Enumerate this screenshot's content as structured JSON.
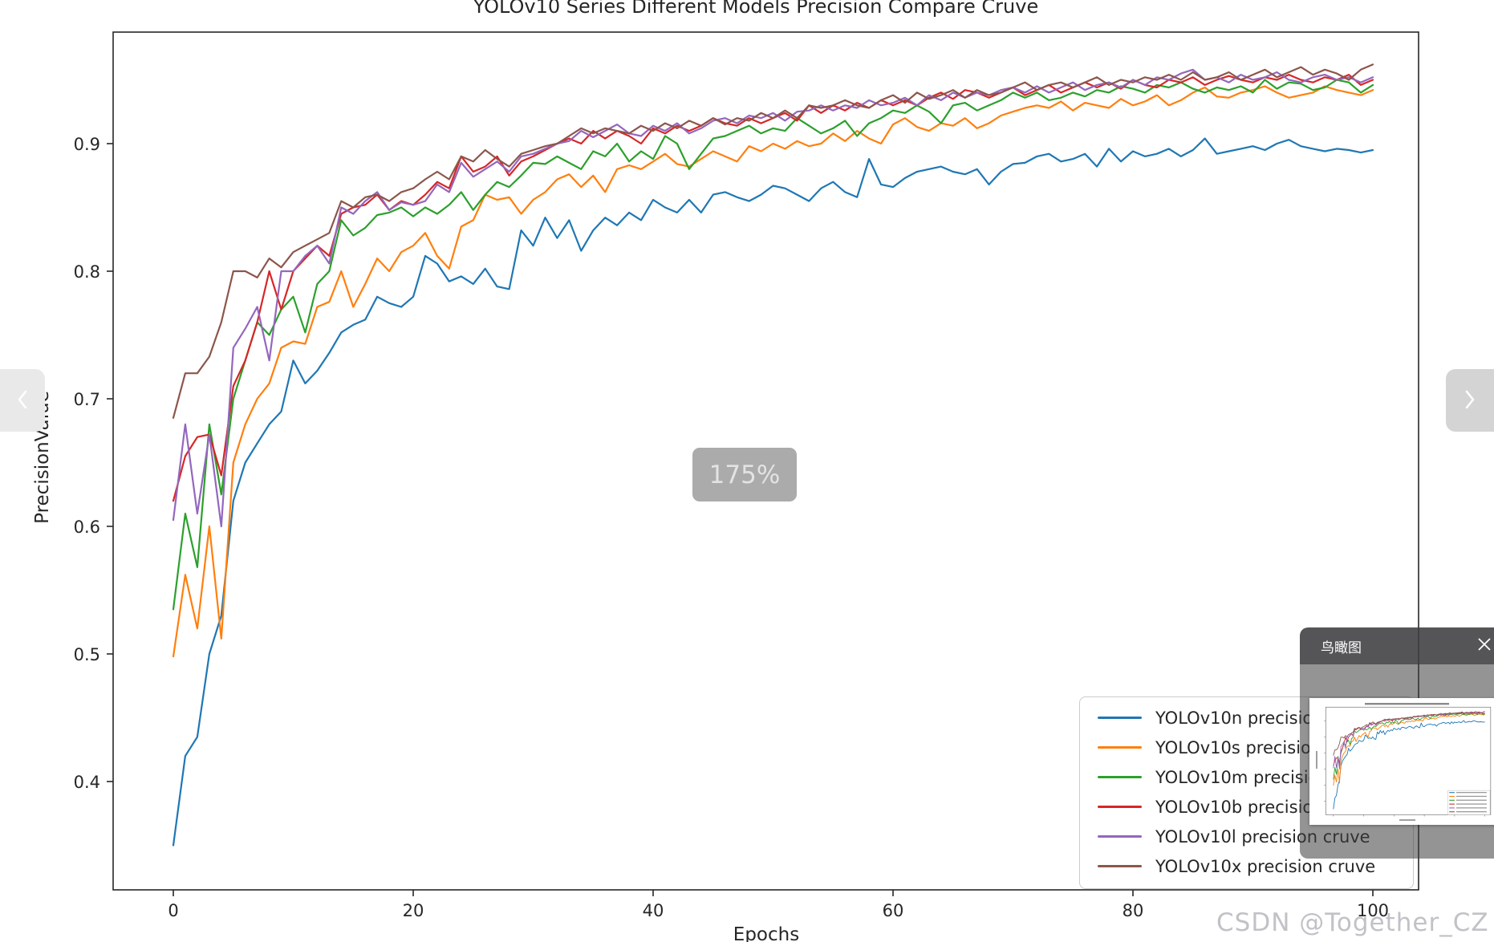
{
  "viewer": {
    "zoom_badge": "175%",
    "watermark": "CSDN @Together_CZ",
    "minimap_title": "鸟瞰图",
    "prev_tooltip": "previous image",
    "next_tooltip": "next image",
    "colors": {
      "badge_bg": "#ababab",
      "panel_header_bg": "#58585a",
      "panel_body_bg": "#919193",
      "watermark_text": "#b4b4bc",
      "nav_prev_bg": "#e9e9ea",
      "nav_next_bg": "#d4d4d5"
    }
  },
  "chart_data": {
    "type": "line",
    "title": "YOLOv10 Series Different Models Precision Compare Cruve",
    "xlabel": "Epochs",
    "ylabel": "PrecisionValue",
    "xlim": [
      -5,
      105
    ],
    "ylim": [
      0.315,
      0.99
    ],
    "grid": false,
    "legend_position": "lower right",
    "x_ticks": [
      0,
      20,
      40,
      60,
      80,
      100
    ],
    "x_tick_labels": [
      "0",
      "20",
      "40",
      "60",
      "80",
      "100"
    ],
    "y_ticks": [
      0.4,
      0.5,
      0.6,
      0.7,
      0.8,
      0.9
    ],
    "y_tick_labels": [
      "0.4",
      "0.5",
      "0.6",
      "0.7",
      "0.8",
      "0.9"
    ],
    "axis_color": "#262626",
    "series": [
      {
        "name": "YOLOv10n precision cruve",
        "color": "#1f77b4",
        "values": [
          0.35,
          0.42,
          0.435,
          0.5,
          0.53,
          0.62,
          0.65,
          0.665,
          0.68,
          0.69,
          0.73,
          0.712,
          0.722,
          0.736,
          0.752,
          0.758,
          0.762,
          0.78,
          0.775,
          0.772,
          0.78,
          0.812,
          0.806,
          0.792,
          0.796,
          0.79,
          0.802,
          0.788,
          0.786,
          0.832,
          0.82,
          0.842,
          0.826,
          0.84,
          0.816,
          0.832,
          0.842,
          0.836,
          0.846,
          0.84,
          0.856,
          0.85,
          0.846,
          0.856,
          0.846,
          0.86,
          0.862,
          0.858,
          0.855,
          0.86,
          0.867,
          0.865,
          0.86,
          0.855,
          0.865,
          0.87,
          0.862,
          0.858,
          0.888,
          0.868,
          0.866,
          0.873,
          0.878,
          0.88,
          0.882,
          0.878,
          0.876,
          0.88,
          0.868,
          0.878,
          0.884,
          0.885,
          0.89,
          0.892,
          0.886,
          0.888,
          0.892,
          0.882,
          0.896,
          0.886,
          0.894,
          0.89,
          0.892,
          0.896,
          0.89,
          0.895,
          0.904,
          0.892,
          0.894,
          0.896,
          0.898,
          0.895,
          0.9,
          0.903,
          0.898,
          0.896,
          0.894,
          0.896,
          0.895,
          0.893,
          0.895
        ]
      },
      {
        "name": "YOLOv10s precision cruve",
        "color": "#ff7f0e",
        "values": [
          0.498,
          0.562,
          0.52,
          0.6,
          0.512,
          0.65,
          0.68,
          0.7,
          0.712,
          0.74,
          0.745,
          0.743,
          0.772,
          0.776,
          0.8,
          0.772,
          0.79,
          0.81,
          0.8,
          0.815,
          0.82,
          0.83,
          0.812,
          0.802,
          0.835,
          0.84,
          0.86,
          0.856,
          0.858,
          0.845,
          0.856,
          0.862,
          0.872,
          0.876,
          0.866,
          0.875,
          0.862,
          0.88,
          0.883,
          0.88,
          0.886,
          0.892,
          0.884,
          0.882,
          0.888,
          0.894,
          0.89,
          0.886,
          0.898,
          0.894,
          0.9,
          0.896,
          0.902,
          0.898,
          0.9,
          0.908,
          0.902,
          0.91,
          0.904,
          0.9,
          0.915,
          0.92,
          0.913,
          0.91,
          0.916,
          0.914,
          0.92,
          0.912,
          0.916,
          0.922,
          0.925,
          0.928,
          0.93,
          0.928,
          0.933,
          0.926,
          0.932,
          0.93,
          0.928,
          0.935,
          0.93,
          0.933,
          0.938,
          0.93,
          0.934,
          0.94,
          0.944,
          0.937,
          0.936,
          0.94,
          0.942,
          0.945,
          0.94,
          0.936,
          0.938,
          0.94,
          0.945,
          0.942,
          0.94,
          0.938,
          0.942
        ]
      },
      {
        "name": "YOLOv10m precision cruve",
        "color": "#2ca02c",
        "values": [
          0.535,
          0.61,
          0.568,
          0.68,
          0.625,
          0.7,
          0.73,
          0.76,
          0.75,
          0.77,
          0.78,
          0.752,
          0.79,
          0.8,
          0.84,
          0.828,
          0.834,
          0.844,
          0.846,
          0.85,
          0.843,
          0.85,
          0.845,
          0.852,
          0.862,
          0.848,
          0.86,
          0.87,
          0.866,
          0.875,
          0.885,
          0.884,
          0.89,
          0.885,
          0.88,
          0.894,
          0.89,
          0.9,
          0.886,
          0.894,
          0.888,
          0.906,
          0.9,
          0.88,
          0.892,
          0.904,
          0.906,
          0.91,
          0.914,
          0.908,
          0.912,
          0.91,
          0.92,
          0.914,
          0.908,
          0.912,
          0.918,
          0.906,
          0.916,
          0.92,
          0.926,
          0.924,
          0.93,
          0.925,
          0.916,
          0.93,
          0.932,
          0.926,
          0.93,
          0.934,
          0.94,
          0.936,
          0.94,
          0.934,
          0.936,
          0.94,
          0.937,
          0.942,
          0.94,
          0.945,
          0.943,
          0.94,
          0.946,
          0.944,
          0.948,
          0.943,
          0.94,
          0.944,
          0.942,
          0.945,
          0.94,
          0.95,
          0.943,
          0.948,
          0.947,
          0.942,
          0.944,
          0.95,
          0.948,
          0.94,
          0.946
        ]
      },
      {
        "name": "YOLOv10b precision cruve",
        "color": "#d62728",
        "values": [
          0.62,
          0.655,
          0.67,
          0.672,
          0.64,
          0.71,
          0.73,
          0.76,
          0.8,
          0.77,
          0.8,
          0.81,
          0.82,
          0.812,
          0.845,
          0.85,
          0.852,
          0.86,
          0.848,
          0.855,
          0.852,
          0.86,
          0.87,
          0.865,
          0.89,
          0.878,
          0.882,
          0.89,
          0.875,
          0.886,
          0.89,
          0.895,
          0.9,
          0.904,
          0.9,
          0.91,
          0.904,
          0.91,
          0.906,
          0.9,
          0.912,
          0.908,
          0.914,
          0.91,
          0.914,
          0.92,
          0.916,
          0.914,
          0.92,
          0.916,
          0.92,
          0.924,
          0.918,
          0.93,
          0.924,
          0.93,
          0.926,
          0.932,
          0.928,
          0.934,
          0.93,
          0.934,
          0.93,
          0.936,
          0.94,
          0.935,
          0.942,
          0.94,
          0.936,
          0.94,
          0.944,
          0.938,
          0.942,
          0.946,
          0.94,
          0.944,
          0.948,
          0.944,
          0.948,
          0.943,
          0.95,
          0.946,
          0.944,
          0.95,
          0.948,
          0.952,
          0.946,
          0.95,
          0.953,
          0.95,
          0.948,
          0.952,
          0.95,
          0.954,
          0.95,
          0.948,
          0.952,
          0.95,
          0.954,
          0.946,
          0.95
        ]
      },
      {
        "name": "YOLOv10l precision cruve",
        "color": "#9467bd",
        "values": [
          0.605,
          0.68,
          0.61,
          0.672,
          0.6,
          0.74,
          0.755,
          0.772,
          0.73,
          0.8,
          0.8,
          0.812,
          0.82,
          0.806,
          0.85,
          0.845,
          0.855,
          0.862,
          0.848,
          0.854,
          0.852,
          0.855,
          0.868,
          0.862,
          0.885,
          0.874,
          0.88,
          0.886,
          0.878,
          0.89,
          0.892,
          0.896,
          0.9,
          0.902,
          0.91,
          0.905,
          0.91,
          0.915,
          0.908,
          0.906,
          0.914,
          0.91,
          0.916,
          0.908,
          0.912,
          0.918,
          0.92,
          0.916,
          0.922,
          0.92,
          0.924,
          0.918,
          0.925,
          0.926,
          0.93,
          0.926,
          0.93,
          0.928,
          0.934,
          0.93,
          0.932,
          0.936,
          0.93,
          0.938,
          0.934,
          0.94,
          0.936,
          0.94,
          0.938,
          0.942,
          0.944,
          0.94,
          0.945,
          0.94,
          0.944,
          0.948,
          0.942,
          0.946,
          0.948,
          0.944,
          0.95,
          0.946,
          0.952,
          0.95,
          0.955,
          0.958,
          0.95,
          0.952,
          0.948,
          0.954,
          0.95,
          0.952,
          0.956,
          0.95,
          0.948,
          0.952,
          0.954,
          0.95,
          0.952,
          0.948,
          0.952
        ]
      },
      {
        "name": "YOLOv10x precision cruve",
        "color": "#8c564b",
        "values": [
          0.685,
          0.72,
          0.72,
          0.733,
          0.76,
          0.8,
          0.8,
          0.795,
          0.81,
          0.803,
          0.815,
          0.82,
          0.825,
          0.83,
          0.855,
          0.85,
          0.858,
          0.86,
          0.855,
          0.862,
          0.865,
          0.872,
          0.878,
          0.872,
          0.89,
          0.886,
          0.895,
          0.888,
          0.882,
          0.892,
          0.895,
          0.898,
          0.9,
          0.906,
          0.912,
          0.908,
          0.912,
          0.91,
          0.908,
          0.914,
          0.91,
          0.916,
          0.912,
          0.918,
          0.914,
          0.92,
          0.915,
          0.92,
          0.918,
          0.924,
          0.92,
          0.926,
          0.92,
          0.93,
          0.928,
          0.93,
          0.934,
          0.93,
          0.928,
          0.934,
          0.938,
          0.932,
          0.94,
          0.935,
          0.938,
          0.942,
          0.936,
          0.942,
          0.938,
          0.94,
          0.944,
          0.948,
          0.942,
          0.946,
          0.948,
          0.944,
          0.948,
          0.952,
          0.946,
          0.95,
          0.948,
          0.952,
          0.95,
          0.954,
          0.95,
          0.956,
          0.95,
          0.952,
          0.956,
          0.95,
          0.954,
          0.958,
          0.952,
          0.956,
          0.96,
          0.954,
          0.958,
          0.955,
          0.95,
          0.958,
          0.962
        ]
      }
    ]
  }
}
